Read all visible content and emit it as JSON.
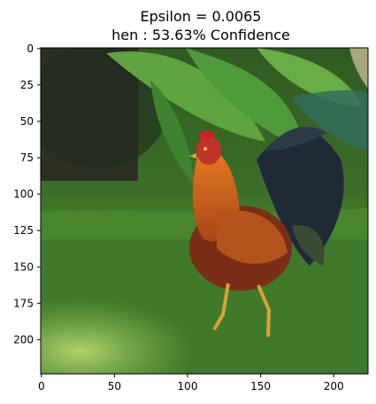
{
  "chart_data": {
    "type": "image",
    "title_lines": [
      "Epsilon = 0.0065",
      "hen : 53.63% Confidence"
    ],
    "xlabel": "",
    "ylabel": "",
    "xlim": [
      -0.5,
      223.5
    ],
    "ylim": [
      223.5,
      -0.5
    ],
    "x_ticks": [
      0,
      50,
      100,
      150,
      200
    ],
    "y_ticks": [
      0,
      25,
      50,
      75,
      100,
      125,
      150,
      175,
      200
    ],
    "grid": false,
    "image_subject": "rooster standing on grass in front of large green leaves"
  },
  "colors": {
    "grass": "#3f7a2a",
    "grass_light": "#8fc35a",
    "leaves": "#4f9a3a",
    "leaves_dark": "#1f4a1a",
    "tree_trunk": "#2b2a24",
    "rooster_body": "#b5531d",
    "rooster_neck": "#d86a18",
    "rooster_tail": "#1f2a36",
    "rooster_comb": "#cf1f2c"
  }
}
